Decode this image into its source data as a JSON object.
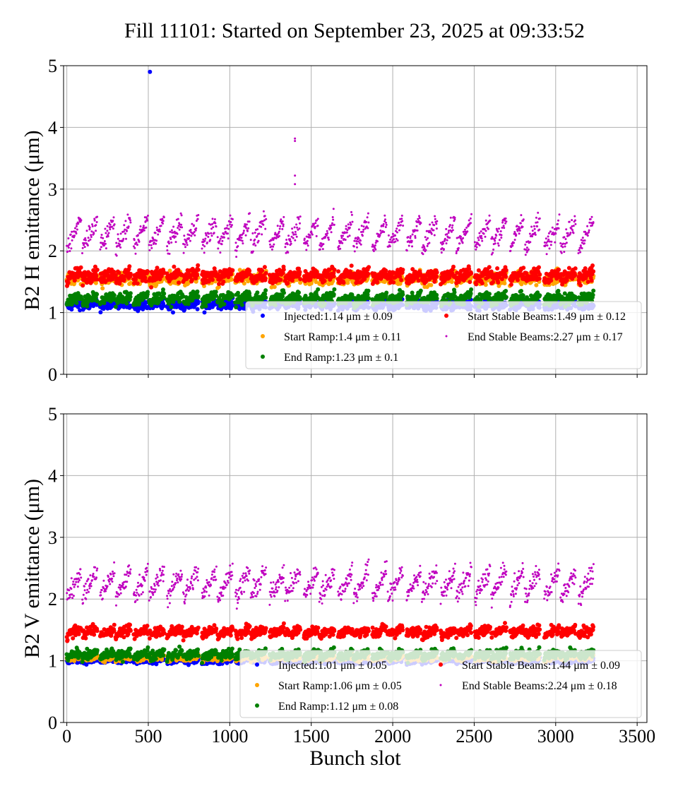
{
  "figure": {
    "title": "Fill 11101: Started on September 23, 2025 at 09:33:52",
    "xlabel": "Bunch slot"
  },
  "colors": {
    "Injected": "#0000ff",
    "Start Ramp": "#ffa500",
    "End Ramp": "#008000",
    "Start Stable Beams": "#ff0000",
    "End Stable Beams": "#bf00bf",
    "grid": "#b0b0b0"
  },
  "chart_data": [
    {
      "type": "scatter",
      "ylabel": "B2 H emittance (μm)",
      "xlim": [
        -20,
        3560
      ],
      "ylim": [
        0,
        5
      ],
      "xticks": [
        "0",
        "500",
        "1000",
        "1500",
        "2000",
        "2500",
        "3000",
        "3500"
      ],
      "yticks": [
        "0",
        "1",
        "2",
        "3",
        "4",
        "5"
      ],
      "show_xticklabels": false,
      "grid": true,
      "legend_position": "lower-right",
      "series": [
        {
          "name": "Injected",
          "label": "Injected:1.14 μm ± 0.09",
          "mean": 1.14,
          "std": 0.09,
          "start": 1.1,
          "slope": 0.05
        },
        {
          "name": "Start Ramp",
          "label": "Start Ramp:1.4 μm ± 0.11",
          "mean": 1.4,
          "std": 0.11,
          "start": 1.52,
          "slope": 0.06
        },
        {
          "name": "End Ramp",
          "label": "End Ramp:1.23 μm ± 0.1",
          "mean": 1.23,
          "std": 0.1,
          "start": 1.18,
          "slope": 0.1
        },
        {
          "name": "Start Stable Beams",
          "label": "Start Stable Beams:1.49 μm ± 0.12",
          "mean": 1.49,
          "std": 0.12,
          "start": 1.55,
          "slope": 0.1
        },
        {
          "name": "End Stable Beams",
          "label": "End Stable Beams:2.27 μm ± 0.17",
          "mean": 2.27,
          "std": 0.17,
          "start": 2.05,
          "slope": 0.45
        }
      ],
      "outliers": [
        {
          "series": "Injected",
          "x": 510,
          "y": 4.9
        },
        {
          "series": "End Stable Beams",
          "x": 1400,
          "y": 3.82
        },
        {
          "series": "End Stable Beams",
          "x": 1400,
          "y": 3.78
        },
        {
          "series": "End Stable Beams",
          "x": 1400,
          "y": 3.22
        },
        {
          "series": "End Stable Beams",
          "x": 1400,
          "y": 3.08
        }
      ]
    },
    {
      "type": "scatter",
      "ylabel": "B2 V emittance (μm)",
      "xlim": [
        -20,
        3560
      ],
      "ylim": [
        0,
        5
      ],
      "xticks": [
        "0",
        "500",
        "1000",
        "1500",
        "2000",
        "2500",
        "3000",
        "3500"
      ],
      "yticks": [
        "0",
        "1",
        "2",
        "3",
        "4",
        "5"
      ],
      "show_xticklabels": true,
      "grid": true,
      "legend_position": "lower-right",
      "series": [
        {
          "name": "Injected",
          "label": "Injected:1.01 μm ± 0.05",
          "mean": 1.01,
          "std": 0.05,
          "start": 0.98,
          "slope": 0.04
        },
        {
          "name": "Start Ramp",
          "label": "Start Ramp:1.06 μm ± 0.05",
          "mean": 1.06,
          "std": 0.05,
          "start": 1.02,
          "slope": 0.05
        },
        {
          "name": "End Ramp",
          "label": "End Ramp:1.12 μm ± 0.08",
          "mean": 1.12,
          "std": 0.08,
          "start": 1.06,
          "slope": 0.08
        },
        {
          "name": "Start Stable Beams",
          "label": "Start Stable Beams:1.44 μm ± 0.09",
          "mean": 1.44,
          "std": 0.09,
          "start": 1.42,
          "slope": 0.1
        },
        {
          "name": "End Stable Beams",
          "label": "End Stable Beams:2.24 μm ± 0.18",
          "mean": 2.24,
          "std": 0.18,
          "start": 2.02,
          "slope": 0.45
        }
      ],
      "outliers": []
    }
  ],
  "train_starts": [
    0,
    95,
    205,
    300,
    410,
    505,
    615,
    715,
    830,
    925,
    1035,
    1130,
    1245,
    1340,
    1455,
    1550,
    1665,
    1760,
    1875,
    1970,
    2085,
    2180,
    2295,
    2390,
    2505,
    2605,
    2720,
    2810,
    2930,
    3030,
    3140
  ]
}
